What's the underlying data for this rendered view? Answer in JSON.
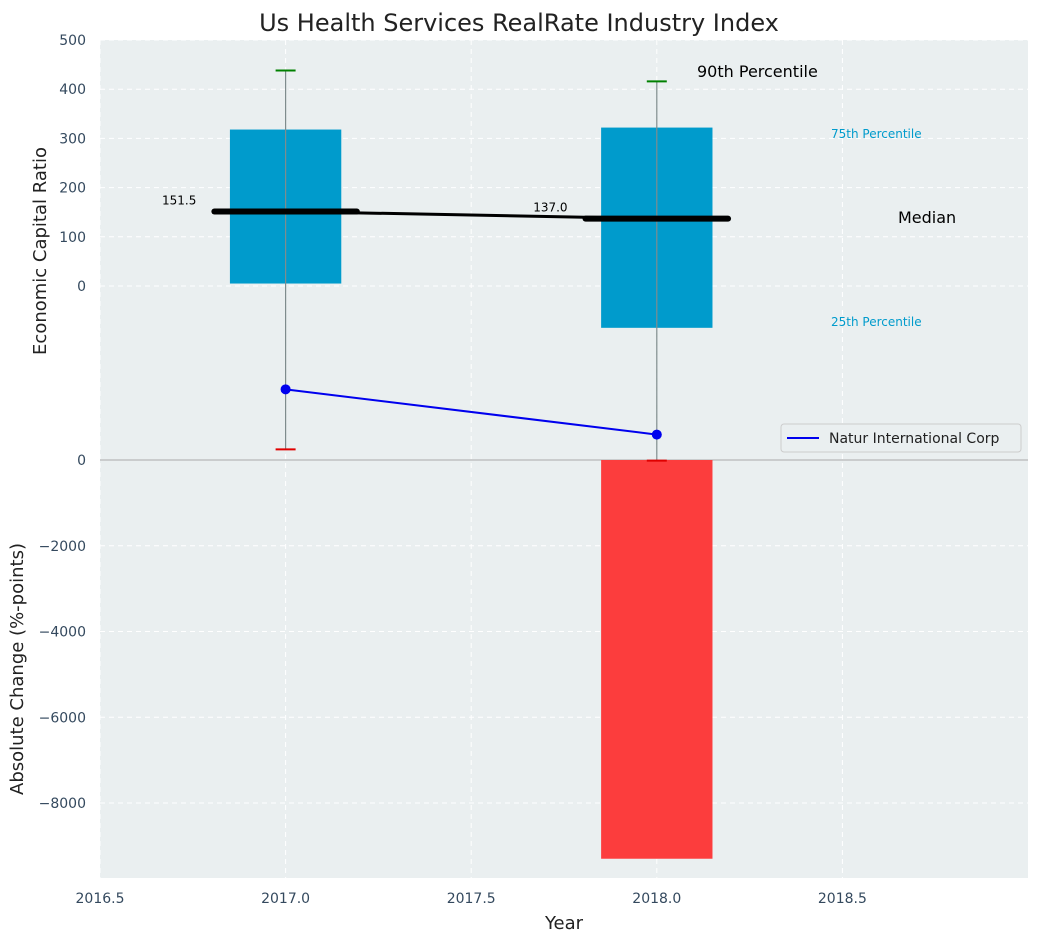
{
  "chart_data": {
    "type": "box+bar",
    "title": "Us Health Services RealRate Industry Index",
    "xlabel": "Year",
    "xlim": [
      2016.5,
      2019.0
    ],
    "x_ticks": [
      2016.5,
      2017.0,
      2017.5,
      2018.0,
      2018.5
    ],
    "x_tick_labels": [
      "2016.5",
      "2017.0",
      "2017.5",
      "2018.0",
      "2018.5"
    ],
    "top_panel": {
      "ylabel": "Economic Capital Ratio",
      "y_ticks": [
        0,
        100,
        200,
        300,
        400,
        500
      ],
      "y_tick_labels": [
        "0",
        "100",
        "200",
        "300",
        "400",
        "500"
      ],
      "boxes": [
        {
          "x": 2017.0,
          "p25": 5,
          "p75": 318,
          "median": 151.5,
          "p90": 438,
          "p10": -332,
          "median_label": "151.5"
        },
        {
          "x": 2018.0,
          "p25": -85,
          "p75": 322,
          "median": 137.0,
          "p90": 416,
          "p10": -355,
          "median_label": "137.0"
        }
      ],
      "company_series": {
        "name": "Natur International Corp",
        "x": [
          2017.0,
          2018.0
        ],
        "y": [
          -210,
          -302
        ]
      },
      "annotations": {
        "p90": "90th Percentile",
        "p75": "75th Percentile",
        "median": "Median",
        "p25": "25th Percentile"
      },
      "legend_position": "right"
    },
    "bottom_panel": {
      "ylabel": "Absolute Change (%-points)",
      "y_ticks": [
        0,
        -2000,
        -4000,
        -6000,
        -8000
      ],
      "y_tick_labels": [
        "0",
        "−2000",
        "−4000",
        "−6000",
        "−8000"
      ],
      "bars": [
        {
          "x": 2018.0,
          "value": -9300
        }
      ]
    },
    "colors": {
      "box": "#009bcc",
      "median": "#000000",
      "p90_cap": "#008000",
      "p10_cap": "#e00000",
      "company": "#0000ee",
      "negative_bar": "#fc3d3d",
      "annotation_blue": "#009bcc",
      "plot_bg": "#eaeff0"
    }
  }
}
